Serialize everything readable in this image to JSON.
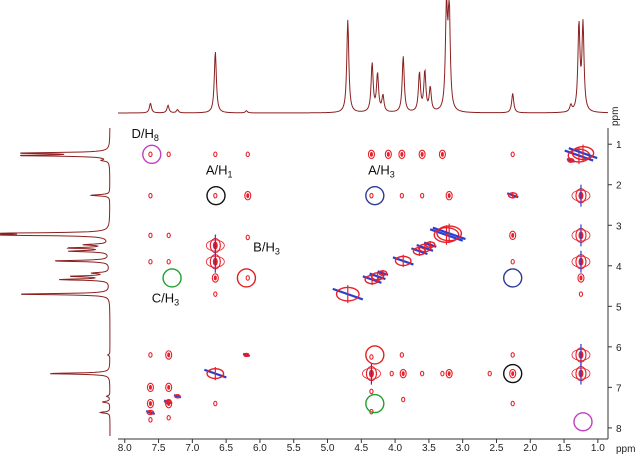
{
  "chart_data": {
    "type": "heatmap",
    "title": "",
    "x_axis": {
      "unit": "ppm",
      "range": [
        8.1,
        0.85
      ],
      "ticks": [
        "8.0",
        "7.5",
        "7.0",
        "6.5",
        "6.0",
        "5.5",
        "5.0",
        "4.5",
        "4.0",
        "3.5",
        "3.0",
        "2.5",
        "2.0",
        "1.5",
        "1.0"
      ]
    },
    "y_axis": {
      "unit": "ppm",
      "range": [
        0.6,
        8.2
      ],
      "ticks": [
        "1",
        "2",
        "3",
        "4",
        "5",
        "6",
        "7",
        "8"
      ]
    },
    "grid": false,
    "colors": {
      "positive_contour": "#e8202a",
      "negative_contour": "#2a3fd0",
      "projection_line": "#8b2020",
      "axis": "#333333"
    },
    "projection_peaks": [
      {
        "ppm": 7.62,
        "intensity": 0.09
      },
      {
        "ppm": 7.36,
        "intensity": 0.07
      },
      {
        "ppm": 7.22,
        "intensity": 0.03
      },
      {
        "ppm": 6.66,
        "intensity": 0.57
      },
      {
        "ppm": 6.2,
        "intensity": 0.02
      },
      {
        "ppm": 4.7,
        "intensity": 0.86
      },
      {
        "ppm": 4.34,
        "intensity": 0.45
      },
      {
        "ppm": 4.26,
        "intensity": 0.35
      },
      {
        "ppm": 4.18,
        "intensity": 0.15
      },
      {
        "ppm": 3.88,
        "intensity": 0.52
      },
      {
        "ppm": 3.64,
        "intensity": 0.36
      },
      {
        "ppm": 3.56,
        "intensity": 0.37
      },
      {
        "ppm": 3.48,
        "intensity": 0.22
      },
      {
        "ppm": 3.24,
        "intensity": 0.95
      },
      {
        "ppm": 3.2,
        "intensity": 0.95
      },
      {
        "ppm": 2.26,
        "intensity": 0.18
      },
      {
        "ppm": 1.4,
        "intensity": 0.06
      },
      {
        "ppm": 1.28,
        "intensity": 0.8
      },
      {
        "ppm": 1.22,
        "intensity": 0.8
      }
    ],
    "cross_peaks": [
      {
        "x": 7.62,
        "y": 1.25,
        "size": 1
      },
      {
        "x": 7.35,
        "y": 1.25,
        "size": 1
      },
      {
        "x": 6.66,
        "y": 1.25,
        "size": 1
      },
      {
        "x": 6.18,
        "y": 1.25,
        "size": 1
      },
      {
        "x": 4.35,
        "y": 1.25,
        "size": 2
      },
      {
        "x": 4.1,
        "y": 1.25,
        "size": 2
      },
      {
        "x": 3.9,
        "y": 1.25,
        "size": 2
      },
      {
        "x": 3.6,
        "y": 1.25,
        "size": 2
      },
      {
        "x": 3.3,
        "y": 1.25,
        "size": 2
      },
      {
        "x": 2.26,
        "y": 1.25,
        "size": 1
      },
      {
        "x": 7.62,
        "y": 2.27,
        "size": 1
      },
      {
        "x": 6.66,
        "y": 2.27,
        "size": 1
      },
      {
        "x": 6.18,
        "y": 2.27,
        "size": 2
      },
      {
        "x": 4.35,
        "y": 2.27,
        "size": 1
      },
      {
        "x": 3.9,
        "y": 2.27,
        "size": 1
      },
      {
        "x": 3.6,
        "y": 2.27,
        "size": 1
      },
      {
        "x": 3.2,
        "y": 2.27,
        "size": 2
      },
      {
        "x": 1.25,
        "y": 2.27,
        "size": 3
      },
      {
        "x": 7.62,
        "y": 3.25,
        "size": 1
      },
      {
        "x": 7.35,
        "y": 3.25,
        "size": 1
      },
      {
        "x": 6.66,
        "y": 3.5,
        "size": 3
      },
      {
        "x": 6.18,
        "y": 3.3,
        "size": 1
      },
      {
        "x": 2.26,
        "y": 3.25,
        "size": 2
      },
      {
        "x": 1.25,
        "y": 3.25,
        "size": 3
      },
      {
        "x": 7.62,
        "y": 3.9,
        "size": 1
      },
      {
        "x": 7.35,
        "y": 3.9,
        "size": 1
      },
      {
        "x": 6.66,
        "y": 3.9,
        "size": 3
      },
      {
        "x": 6.66,
        "y": 4.3,
        "size": 2
      },
      {
        "x": 6.18,
        "y": 4.3,
        "size": 1
      },
      {
        "x": 2.26,
        "y": 3.9,
        "size": 1
      },
      {
        "x": 1.25,
        "y": 3.9,
        "size": 3
      },
      {
        "x": 1.25,
        "y": 4.3,
        "size": 2
      },
      {
        "x": 1.25,
        "y": 4.7,
        "size": 1
      },
      {
        "x": 6.66,
        "y": 4.7,
        "size": 1
      },
      {
        "x": 7.62,
        "y": 6.2,
        "size": 1
      },
      {
        "x": 7.35,
        "y": 6.2,
        "size": 2
      },
      {
        "x": 4.35,
        "y": 6.25,
        "size": 1
      },
      {
        "x": 3.9,
        "y": 6.2,
        "size": 1
      },
      {
        "x": 2.26,
        "y": 6.2,
        "size": 1
      },
      {
        "x": 1.25,
        "y": 6.2,
        "size": 3
      },
      {
        "x": 7.62,
        "y": 7.0,
        "size": 2
      },
      {
        "x": 7.35,
        "y": 7.0,
        "size": 2
      },
      {
        "x": 4.35,
        "y": 6.66,
        "size": 3
      },
      {
        "x": 4.05,
        "y": 6.66,
        "size": 1
      },
      {
        "x": 3.88,
        "y": 6.66,
        "size": 2
      },
      {
        "x": 3.6,
        "y": 6.66,
        "size": 1
      },
      {
        "x": 3.3,
        "y": 6.66,
        "size": 1
      },
      {
        "x": 3.2,
        "y": 6.66,
        "size": 2
      },
      {
        "x": 2.6,
        "y": 6.66,
        "size": 1
      },
      {
        "x": 2.26,
        "y": 6.66,
        "size": 2
      },
      {
        "x": 1.25,
        "y": 6.66,
        "size": 3
      },
      {
        "x": 7.62,
        "y": 7.4,
        "size": 2
      },
      {
        "x": 7.35,
        "y": 7.4,
        "size": 2
      },
      {
        "x": 6.66,
        "y": 7.4,
        "size": 1
      },
      {
        "x": 4.35,
        "y": 7.1,
        "size": 1
      },
      {
        "x": 4.35,
        "y": 7.6,
        "size": 1
      },
      {
        "x": 3.88,
        "y": 7.3,
        "size": 1
      },
      {
        "x": 2.26,
        "y": 7.4,
        "size": 1
      },
      {
        "x": 7.62,
        "y": 7.8,
        "size": 1
      },
      {
        "x": 7.35,
        "y": 7.75,
        "size": 1
      }
    ],
    "annotations": [
      {
        "label": "D/H",
        "sub": "8",
        "label_x": 7.9,
        "label_y": 0.85,
        "circle_x": 7.6,
        "circle_y": 1.25,
        "color": "#c040c0"
      },
      {
        "label": "A/H",
        "sub": "1",
        "label_x": 6.8,
        "label_y": 1.75,
        "circle_x": 6.65,
        "circle_y": 2.27,
        "color": "#111111"
      },
      {
        "label": "A/H",
        "sub": "3",
        "label_x": 4.4,
        "label_y": 1.75,
        "circle_x": 4.3,
        "circle_y": 2.27,
        "color": "#2a3a9a"
      },
      {
        "label": "B/H",
        "sub": "3",
        "label_x": 6.1,
        "label_y": 3.65,
        "circle_x": 6.2,
        "circle_y": 4.3,
        "color": "#e02020"
      },
      {
        "label": "C/H",
        "sub": "3",
        "label_x": 7.6,
        "label_y": 4.9,
        "circle_x": 7.3,
        "circle_y": 4.3,
        "color": "#20a030"
      },
      {
        "circle_x": 2.26,
        "circle_y": 4.3,
        "color": "#2a3a9a"
      },
      {
        "circle_x": 4.3,
        "circle_y": 6.2,
        "color": "#e02020"
      },
      {
        "circle_x": 2.26,
        "circle_y": 6.66,
        "color": "#111111"
      },
      {
        "circle_x": 4.3,
        "circle_y": 7.4,
        "color": "#20a030"
      },
      {
        "circle_x": 1.22,
        "circle_y": 7.85,
        "color": "#c040c0"
      }
    ]
  }
}
